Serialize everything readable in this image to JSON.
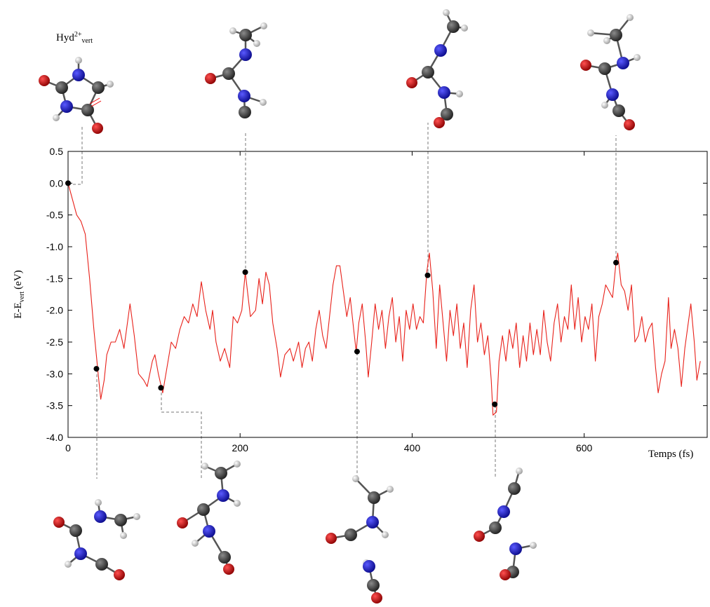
{
  "chart_data": {
    "type": "line",
    "annotation": {
      "main": "Hyd",
      "sup": "2+",
      "sub": "vert"
    },
    "xlabel": "Temps (fs)",
    "ylabel": {
      "main": "E-E",
      "sub": "vert",
      "unit": "(eV)"
    },
    "xlim": [
      0,
      743
    ],
    "ylim": [
      -4.0,
      0.5
    ],
    "xticks": [
      0,
      200,
      400,
      600
    ],
    "yticks": [
      0.5,
      {
        "value": 0,
        "label": "0.0"
      },
      -0.5,
      {
        "value": -1,
        "label": "-1.0"
      },
      -1.5,
      {
        "value": -2,
        "label": "-2.0"
      },
      -2.5,
      {
        "value": -3,
        "label": "-3.0"
      },
      -3.5,
      {
        "value": -4,
        "label": "-4.0"
      }
    ],
    "series": [
      {
        "color": "#e8211a",
        "style": "line",
        "x": [
          0,
          10,
          15,
          20,
          25,
          30,
          35,
          38,
          42,
          45,
          50,
          55,
          60,
          65,
          72,
          77,
          82,
          88,
          92,
          98,
          101,
          105,
          110,
          115,
          120,
          125,
          130,
          135,
          140,
          145,
          150,
          155,
          160,
          165,
          168,
          172,
          177,
          182,
          188,
          192,
          197,
          202,
          206,
          212,
          218,
          222,
          226,
          230,
          234,
          238,
          243,
          247,
          252,
          258,
          262,
          268,
          272,
          276,
          280,
          284,
          288,
          292,
          296,
          300,
          304,
          308,
          312,
          316,
          320,
          324,
          328,
          332,
          335,
          338,
          342,
          346,
          349,
          353,
          357,
          361,
          365,
          369,
          373,
          377,
          381,
          385,
          389,
          393,
          397,
          401,
          405,
          409,
          413,
          417,
          420,
          424,
          428,
          432,
          436,
          440,
          444,
          448,
          452,
          456,
          460,
          464,
          468,
          472,
          476,
          480,
          484,
          488,
          492,
          494,
          498,
          501,
          505,
          509,
          513,
          517,
          521,
          525,
          529,
          533,
          537,
          541,
          545,
          549,
          553,
          557,
          561,
          565,
          569,
          573,
          577,
          581,
          585,
          589,
          593,
          597,
          601,
          605,
          609,
          613,
          617,
          621,
          625,
          629,
          633,
          637,
          639,
          643,
          647,
          651,
          655,
          659,
          663,
          667,
          671,
          675,
          679,
          683,
          686,
          690,
          694,
          698,
          701,
          705,
          709,
          713,
          717,
          721,
          724,
          728,
          731,
          735
        ],
        "values": [
          0,
          -0.5,
          -0.6,
          -0.8,
          -1.5,
          -2.3,
          -3.0,
          -3.4,
          -3.1,
          -2.7,
          -2.5,
          -2.5,
          -2.3,
          -2.6,
          -1.9,
          -2.4,
          -3.0,
          -3.1,
          -3.2,
          -2.8,
          -2.7,
          -3.0,
          -3.3,
          -2.9,
          -2.5,
          -2.6,
          -2.3,
          -2.1,
          -2.2,
          -1.9,
          -2.1,
          -1.55,
          -2.0,
          -2.3,
          -2.0,
          -2.5,
          -2.8,
          -2.6,
          -2.9,
          -2.1,
          -2.2,
          -2.0,
          -1.4,
          -2.1,
          -2.0,
          -1.5,
          -1.9,
          -1.4,
          -1.6,
          -2.2,
          -2.6,
          -3.05,
          -2.7,
          -2.6,
          -2.8,
          -2.5,
          -2.9,
          -2.6,
          -2.5,
          -2.8,
          -2.3,
          -2.0,
          -2.4,
          -2.6,
          -2.1,
          -1.6,
          -1.3,
          -1.3,
          -1.7,
          -2.1,
          -1.8,
          -2.3,
          -2.65,
          -2.2,
          -1.9,
          -2.5,
          -3.05,
          -2.5,
          -1.9,
          -2.3,
          -2.0,
          -2.6,
          -2.1,
          -1.8,
          -2.5,
          -2.1,
          -2.8,
          -2.0,
          -2.3,
          -1.9,
          -2.3,
          -2.1,
          -2.2,
          -1.4,
          -1.1,
          -1.7,
          -2.6,
          -1.6,
          -2.2,
          -2.8,
          -2.0,
          -2.4,
          -1.9,
          -2.6,
          -2.2,
          -2.9,
          -2.0,
          -1.6,
          -2.5,
          -2.2,
          -2.7,
          -2.4,
          -3.1,
          -3.65,
          -3.6,
          -2.8,
          -2.4,
          -2.8,
          -2.3,
          -2.6,
          -2.2,
          -2.9,
          -2.4,
          -2.8,
          -2.2,
          -2.7,
          -2.3,
          -2.7,
          -2.0,
          -2.5,
          -2.8,
          -2.2,
          -1.9,
          -2.5,
          -2.1,
          -2.3,
          -1.6,
          -2.3,
          -1.8,
          -2.5,
          -2.1,
          -2.3,
          -1.9,
          -2.8,
          -2.1,
          -1.9,
          -1.6,
          -1.7,
          -1.8,
          -1.25,
          -1.1,
          -1.6,
          -1.7,
          -2.0,
          -1.6,
          -2.5,
          -2.4,
          -2.1,
          -2.5,
          -2.3,
          -2.2,
          -2.9,
          -3.3,
          -3.0,
          -2.8,
          -1.8,
          -2.6,
          -2.3,
          -2.6,
          -3.2,
          -2.6,
          -2.2,
          -1.9,
          -2.5,
          -3.1,
          -2.8
        ]
      },
      {
        "color": "#000000",
        "style": "marker",
        "x": [
          0,
          33,
          108,
          206,
          336,
          418,
          496,
          637
        ],
        "values": [
          0,
          -2.92,
          -3.22,
          -1.4,
          -2.65,
          -1.45,
          -3.48,
          -1.25
        ]
      }
    ]
  }
}
